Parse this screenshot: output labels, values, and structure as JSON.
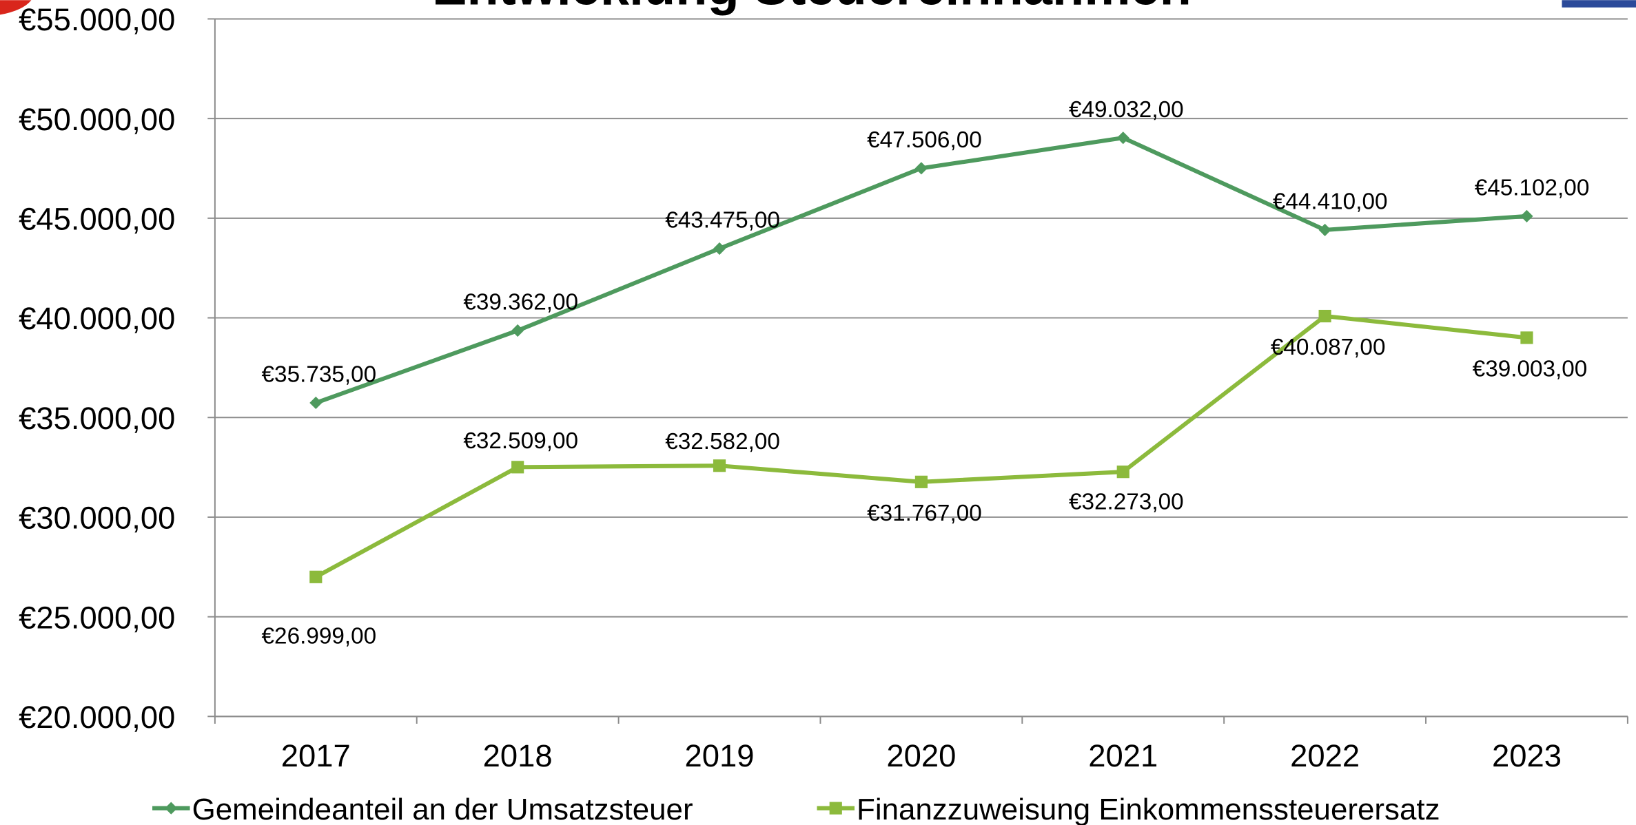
{
  "chart_data": {
    "type": "line",
    "title": "Entwicklung Steuereinnahmen",
    "categories": [
      "2017",
      "2018",
      "2019",
      "2020",
      "2021",
      "2022",
      "2023"
    ],
    "series": [
      {
        "name": "Gemeindeanteil an der Umsatzsteuer",
        "color": "#4e9a5e",
        "marker": "diamond",
        "values": [
          35735,
          39362,
          43475,
          47506,
          49032,
          44410,
          45102
        ],
        "value_labels": [
          "€35.735,00",
          "€39.362,00",
          "€43.475,00",
          "€47.506,00",
          "€49.032,00",
          "€44.410,00",
          "€45.102,00"
        ]
      },
      {
        "name": "Finanzzuweisung Einkommenssteuerersatz",
        "color": "#8cba3c",
        "marker": "square",
        "values": [
          26999,
          32509,
          32582,
          31767,
          32273,
          40087,
          39003
        ],
        "value_labels": [
          "€26.999,00",
          "€32.509,00",
          "€32.582,00",
          "€31.767,00",
          "€32.273,00",
          "€40.087,00",
          "€39.003,00"
        ]
      }
    ],
    "ylim": [
      20000,
      55000
    ],
    "yticks": [
      {
        "value": 20000,
        "label": "€20.000,00"
      },
      {
        "value": 25000,
        "label": "€25.000,00"
      },
      {
        "value": 30000,
        "label": "€30.000,00"
      },
      {
        "value": 35000,
        "label": "€35.000,00"
      },
      {
        "value": 40000,
        "label": "€40.000,00"
      },
      {
        "value": 45000,
        "label": "€45.000,00"
      },
      {
        "value": 50000,
        "label": "€50.000,00"
      },
      {
        "value": 55000,
        "label": "€55.000,00"
      }
    ],
    "grid": true,
    "legend": "bottom"
  }
}
